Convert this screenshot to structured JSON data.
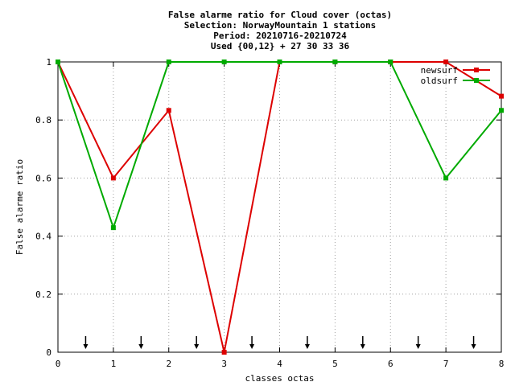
{
  "chart_data": {
    "type": "line",
    "title_lines": [
      "False alarme ratio  for Cloud cover (octas)",
      "Selection: NorwayMountain      1 stations",
      "Period: 20210716-20210724",
      "Used {00,12} + 27 30 33 36"
    ],
    "xlabel": "classes octas",
    "ylabel": "False alarme ratio",
    "xlim": [
      0,
      8
    ],
    "ylim": [
      0,
      1
    ],
    "x_ticks": [
      0,
      1,
      2,
      3,
      4,
      5,
      6,
      7,
      8
    ],
    "y_ticks": [
      0,
      0.2,
      0.4,
      0.6,
      0.8,
      1
    ],
    "y_tick_labels": [
      "0",
      "0.2",
      "0.4",
      "0.6",
      "0.8",
      "1"
    ],
    "grid": true,
    "legend_position": "top-right",
    "arrow_markers_x": [
      0.5,
      1.5,
      2.5,
      3.5,
      4.5,
      5.5,
      6.5,
      7.5
    ],
    "series": [
      {
        "name": "newsurf",
        "color": "#dd0000",
        "x": [
          0,
          1,
          2,
          3,
          4,
          5,
          6,
          7,
          8
        ],
        "y": [
          1,
          0.6,
          0.833,
          0,
          1,
          1,
          1,
          1,
          0.882
        ]
      },
      {
        "name": "oldsurf",
        "color": "#00aa00",
        "x": [
          0,
          1,
          2,
          3,
          4,
          5,
          6,
          7,
          8
        ],
        "y": [
          1,
          0.429,
          1,
          1,
          1,
          1,
          1,
          0.6,
          0.833
        ]
      }
    ]
  }
}
